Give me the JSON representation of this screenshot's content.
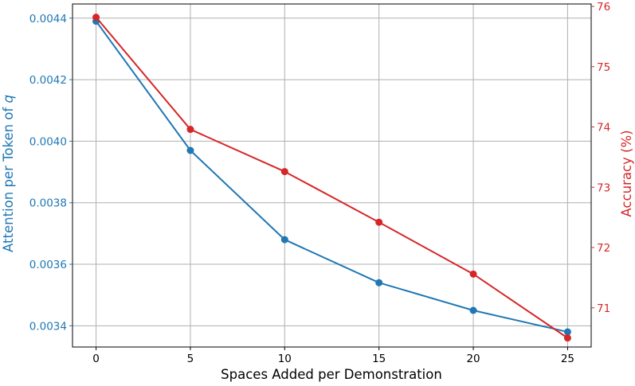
{
  "chart_data": {
    "type": "line",
    "xlabel": "Spaces Added per Demonstration",
    "ylabel_left": "Attention per Token of ",
    "ylabel_left_var": "q",
    "ylabel_right": "Accuracy (%)",
    "x": [
      0,
      5,
      10,
      15,
      20,
      25
    ],
    "x_ticks": [
      "0",
      "5",
      "10",
      "15",
      "20",
      "25"
    ],
    "xlim": [
      -1.25,
      26.25
    ],
    "y_left_ticks": [
      "0.0034",
      "0.0036",
      "0.0038",
      "0.0040",
      "0.0042",
      "0.0044"
    ],
    "y_left_tick_values": [
      0.0034,
      0.0036,
      0.0038,
      0.004,
      0.0042,
      0.0044
    ],
    "ylim_left": [
      0.003331,
      0.004446
    ],
    "y_right_ticks": [
      "71",
      "72",
      "73",
      "74",
      "75",
      "76"
    ],
    "y_right_tick_values": [
      71,
      72,
      73,
      74,
      75,
      76
    ],
    "ylim_right": [
      70.35,
      76.04
    ],
    "grid": true,
    "series": [
      {
        "axis": "left",
        "color": "#1f77b4",
        "values": [
          0.00439,
          0.00397,
          0.00368,
          0.00354,
          0.00345,
          0.00338
        ]
      },
      {
        "axis": "right",
        "color": "#d62728",
        "values": [
          75.82,
          73.96,
          73.26,
          72.42,
          71.56,
          70.5
        ]
      }
    ]
  }
}
